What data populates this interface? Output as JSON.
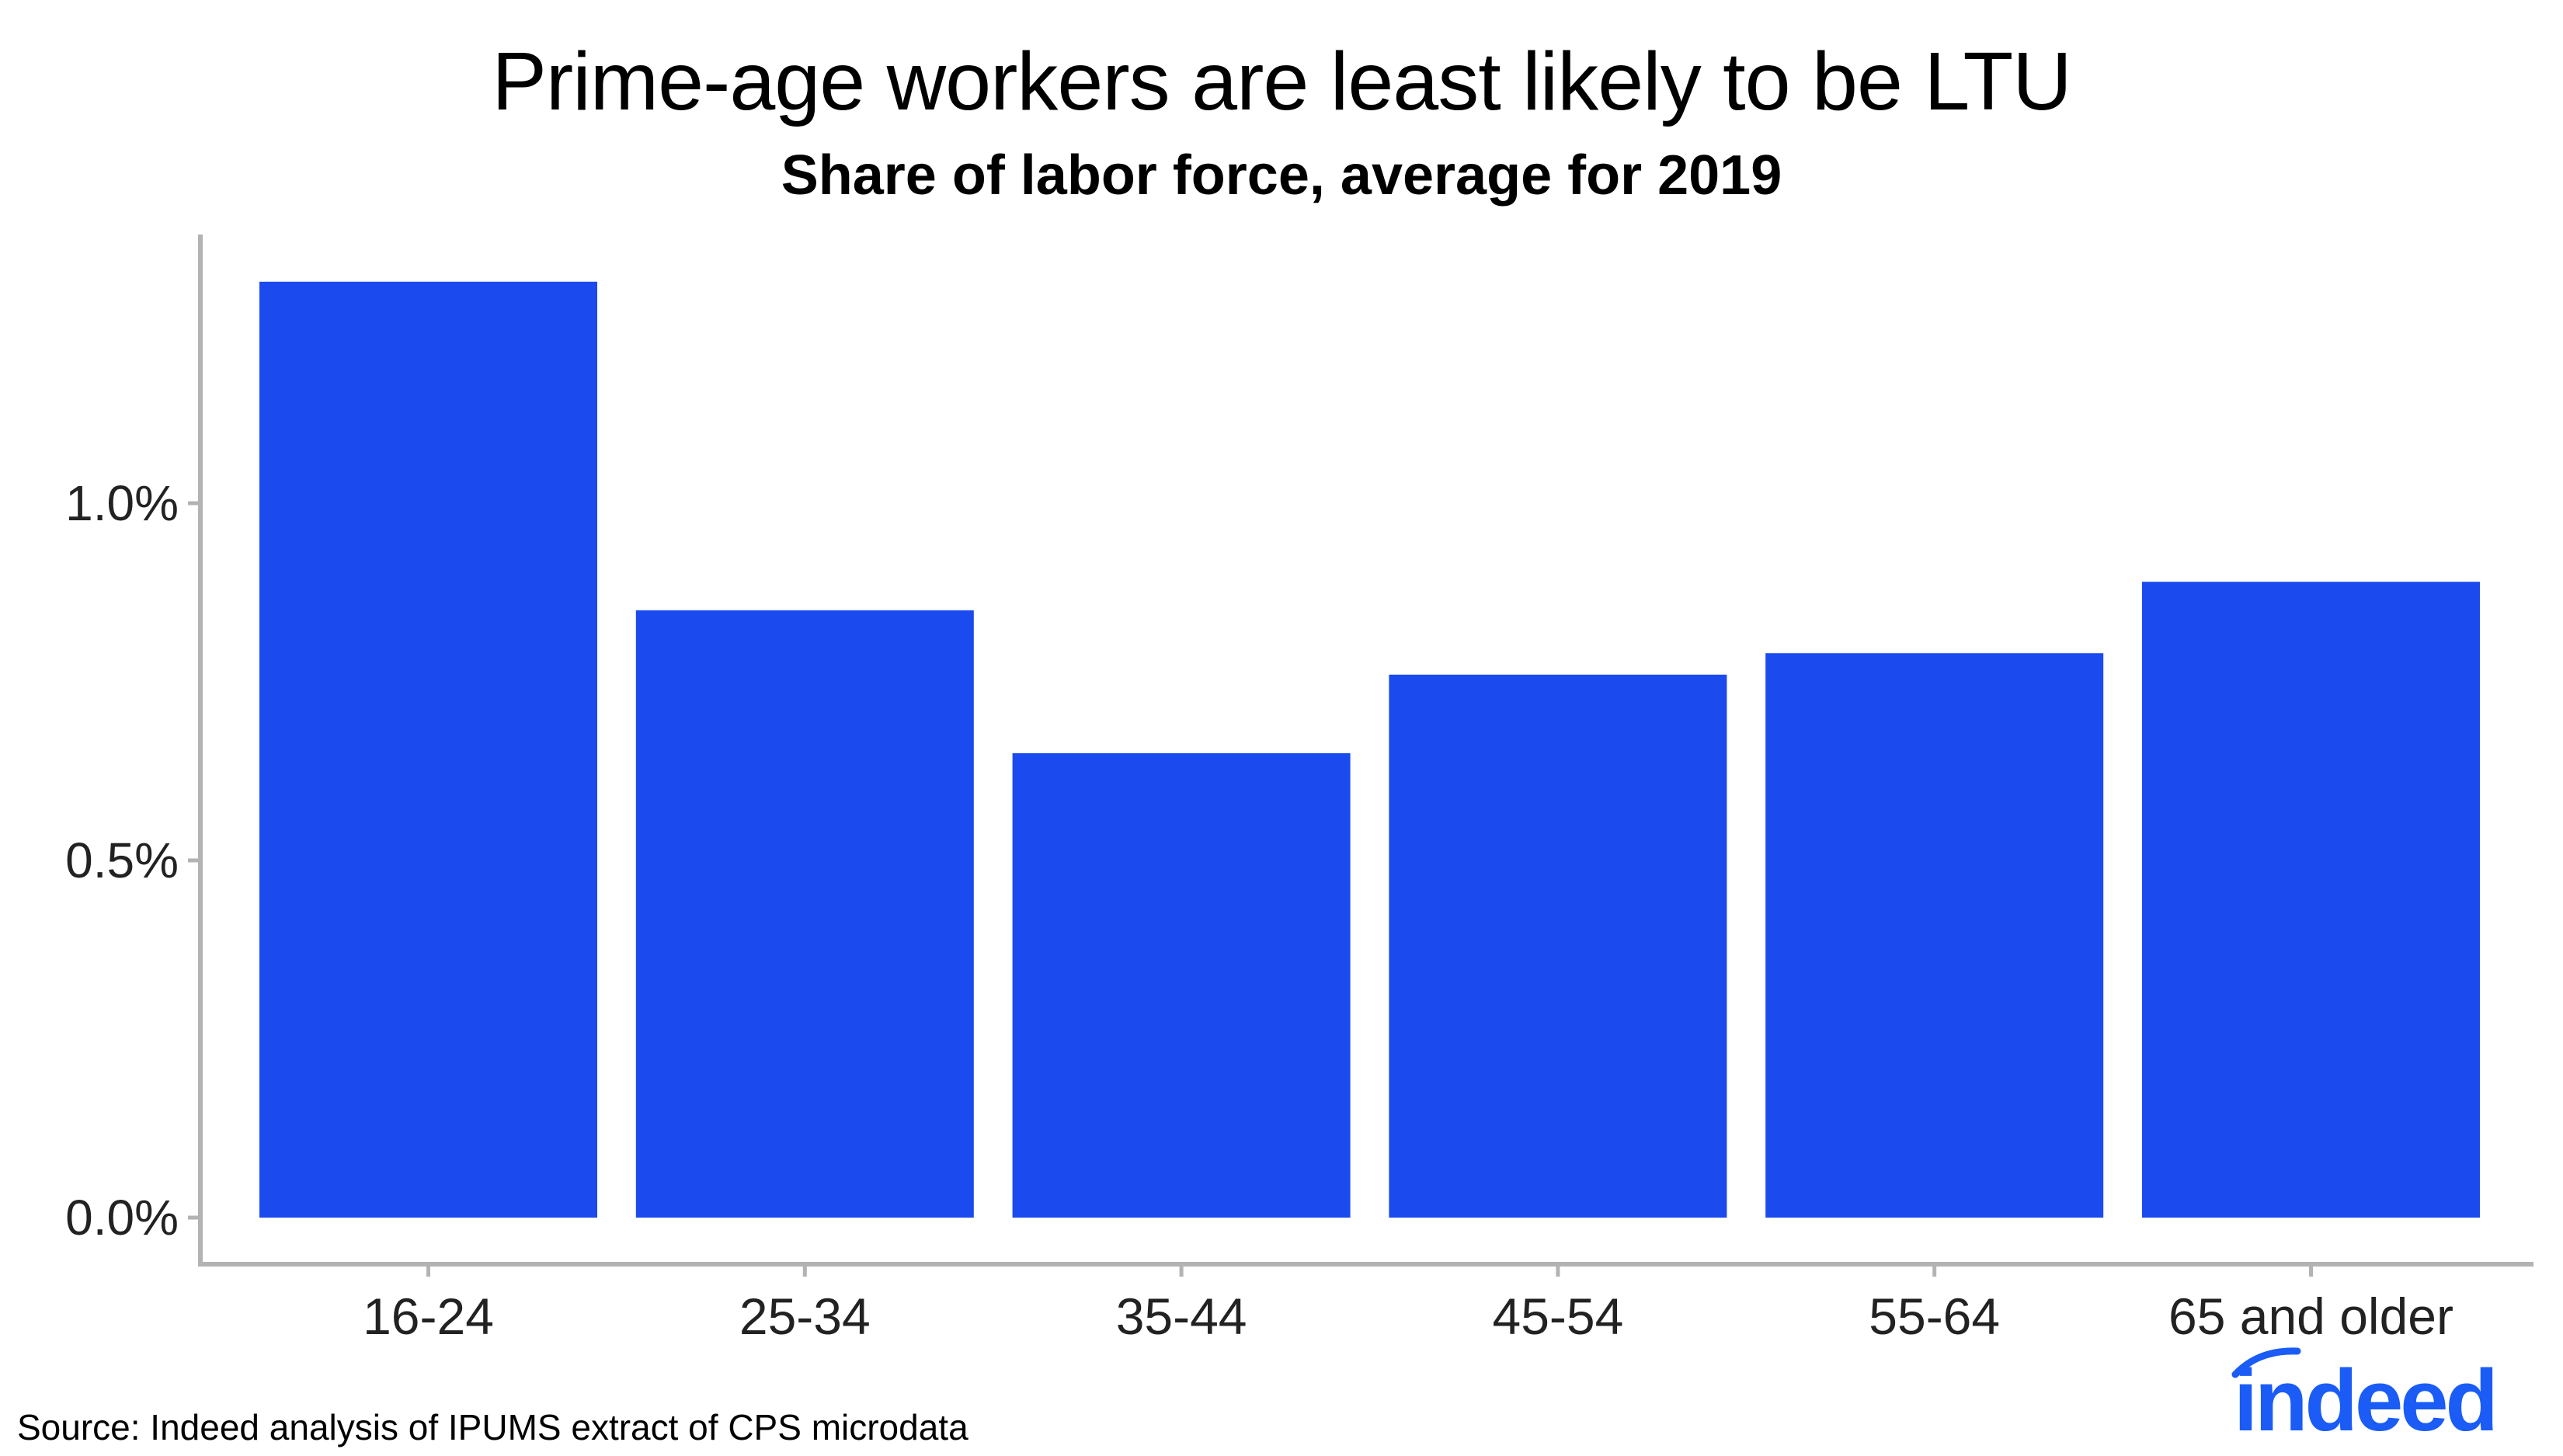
{
  "title": "Prime-age workers are least likely to be LTU",
  "subtitle": "Share of labor force, average for 2019",
  "source": "Source: Indeed analysis of IPUMS extract of CPS microdata",
  "brand": {
    "logo_text": "indeed",
    "color": "#1a5cf5"
  },
  "colors": {
    "bar": "#1b4aef",
    "axis": "#b3b3b3",
    "text": "#000000"
  },
  "chart_data": {
    "type": "bar",
    "title": "Prime-age workers are least likely to be LTU",
    "subtitle": "Share of labor force, average for 2019",
    "xlabel": "",
    "ylabel": "",
    "categories": [
      "16-24",
      "25-34",
      "35-44",
      "45-54",
      "55-64",
      "65 and older"
    ],
    "values": [
      1.31,
      0.85,
      0.65,
      0.76,
      0.79,
      0.89
    ],
    "value_unit": "percent",
    "ylim": [
      0,
      1.4
    ],
    "yticks": [
      0.0,
      0.5,
      1.0
    ],
    "ytick_labels": [
      "0.0%",
      "0.5%",
      "1.0%"
    ],
    "grid": false,
    "legend": "none"
  }
}
